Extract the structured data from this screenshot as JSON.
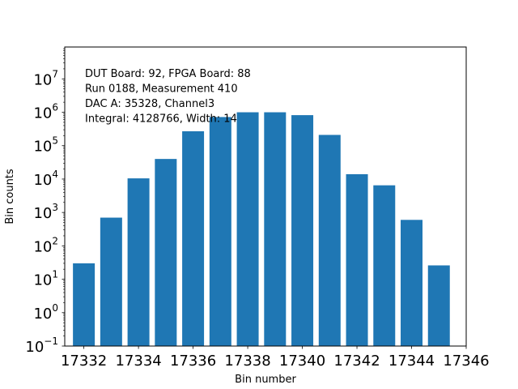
{
  "chart_data": {
    "type": "bar",
    "xlabel": "Bin number",
    "ylabel": "Bin counts",
    "yscale": "log",
    "ylim": [
      0.1,
      90000000
    ],
    "xlim": [
      17331.3,
      17346.0
    ],
    "x": [
      17332,
      17333,
      17334,
      17335,
      17336,
      17337,
      17338,
      17339,
      17340,
      17341,
      17342,
      17343,
      17344,
      17345
    ],
    "values": [
      30,
      700,
      10500,
      40000,
      270000,
      720000,
      1000000,
      1000000,
      820000,
      210000,
      14000,
      6500,
      600,
      26
    ],
    "bar_color": "#1f77b4",
    "bar_width": 0.8,
    "x_ticks": [
      17332,
      17334,
      17336,
      17338,
      17340,
      17342,
      17344,
      17346
    ],
    "x_tick_labels": [
      "17332",
      "17334",
      "17336",
      "17338",
      "17340",
      "17342",
      "17344",
      "17346"
    ],
    "y_ticks": [
      {
        "value": 0.1,
        "base": "10",
        "exp": "−1"
      },
      {
        "value": 1,
        "base": "10",
        "exp": "0"
      },
      {
        "value": 10,
        "base": "10",
        "exp": "1"
      },
      {
        "value": 100,
        "base": "10",
        "exp": "2"
      },
      {
        "value": 1000,
        "base": "10",
        "exp": "3"
      },
      {
        "value": 10000,
        "base": "10",
        "exp": "4"
      },
      {
        "value": 100000,
        "base": "10",
        "exp": "5"
      },
      {
        "value": 1000000,
        "base": "10",
        "exp": "6"
      },
      {
        "value": 10000000,
        "base": "10",
        "exp": "7"
      }
    ],
    "annotations": [
      "DUT Board: 92, FPGA Board: 88",
      "Run 0188, Measurement 410",
      "DAC A: 35328, Channel3",
      "Integral: 4128766, Width: 14"
    ],
    "grid": false
  }
}
